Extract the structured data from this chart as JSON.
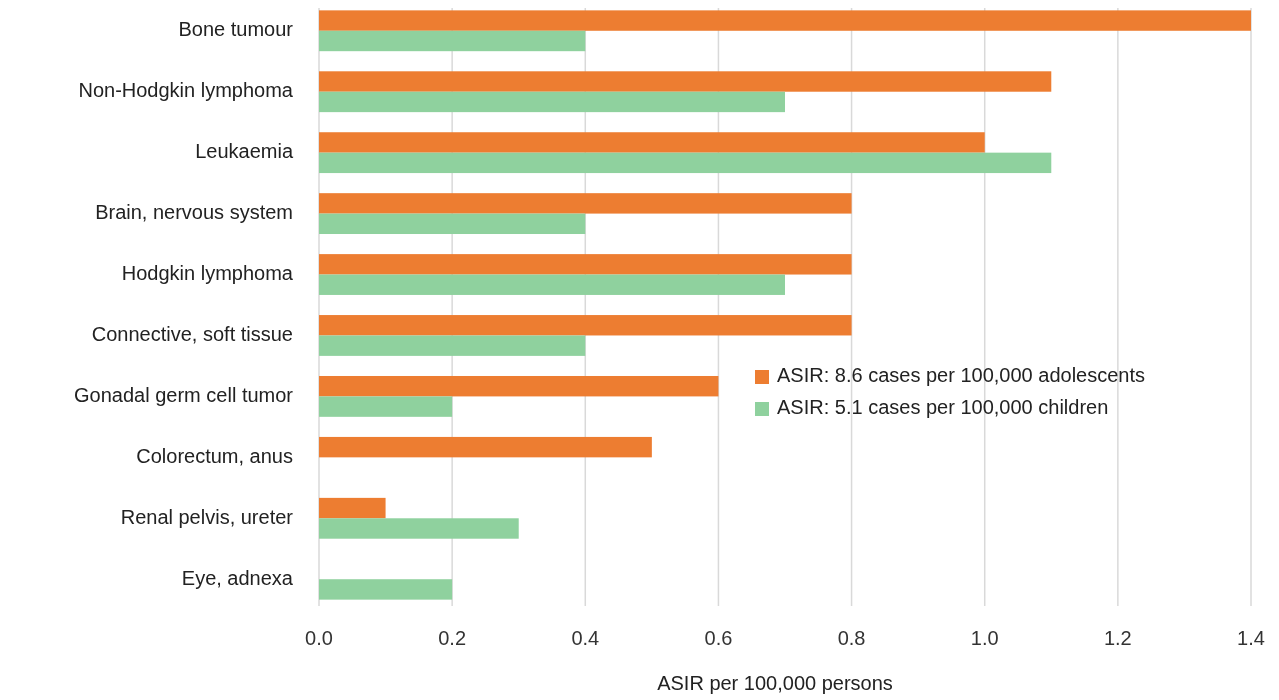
{
  "chart_data": {
    "type": "bar",
    "orientation": "horizontal",
    "xlabel": "ASIR per 100,000 persons",
    "categories": [
      "Bone tumour",
      "Non-Hodgkin lymphoma",
      "Leukaemia",
      "Brain, nervous system",
      "Hodgkin lymphoma",
      "Connective, soft tissue",
      "Gonadal germ cell tumor",
      "Colorectum, anus",
      "Renal pelvis, ureter",
      "Eye, adnexa"
    ],
    "series": [
      {
        "name": "ASIR: 8.6 cases per 100,000 adolescents",
        "color": "#ed7d31",
        "values": [
          1.4,
          1.1,
          1.0,
          0.8,
          0.8,
          0.8,
          0.6,
          0.5,
          0.1,
          0
        ]
      },
      {
        "name": "ASIR: 5.1 cases per 100,000 children",
        "color": "#8fd19e",
        "values": [
          0.4,
          0.7,
          1.1,
          0.4,
          0.7,
          0.4,
          0.2,
          0,
          0.3,
          0.2
        ]
      }
    ],
    "xlim": [
      0,
      1.4
    ],
    "xticks": [
      {
        "value": 0,
        "label": "0.0"
      },
      {
        "value": 0.2,
        "label": "0.2"
      },
      {
        "value": 0.4,
        "label": "0.4"
      },
      {
        "value": 0.6,
        "label": "0.6"
      },
      {
        "value": 0.8,
        "label": "0.8"
      },
      {
        "value": 1.0,
        "label": "1.0"
      },
      {
        "value": 1.2,
        "label": "1.2"
      },
      {
        "value": 1.4,
        "label": "1.4"
      }
    ],
    "grid": "x",
    "legend": "right"
  }
}
